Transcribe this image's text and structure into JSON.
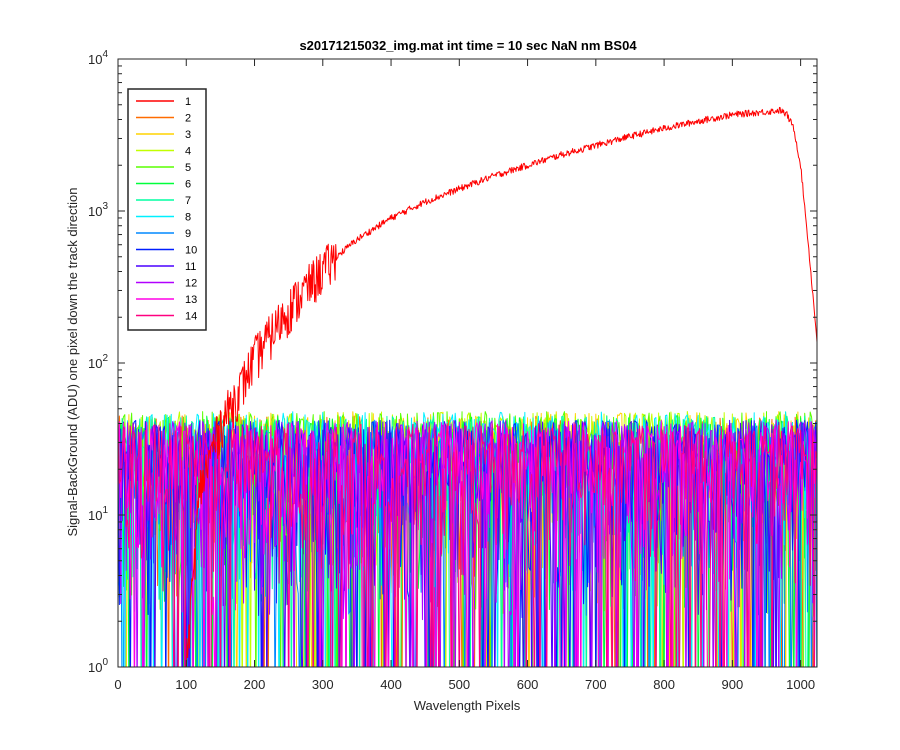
{
  "chart_data": {
    "type": "line",
    "title": "s20171215032_img.mat int time = 10 sec  NaN nm BS04",
    "xlabel": "Wavelength Pixels",
    "ylabel": "Signal-BackGround (ADU) one pixel down the track direction",
    "xlim": [
      0,
      1024
    ],
    "ylim": [
      1,
      10000
    ],
    "yscale": "log",
    "xticks": [
      "0",
      "100",
      "200",
      "300",
      "400",
      "500",
      "600",
      "700",
      "800",
      "900",
      "1000"
    ],
    "yticks": [
      {
        "base": "10",
        "exp": "0"
      },
      {
        "base": "10",
        "exp": "1"
      },
      {
        "base": "10",
        "exp": "2"
      },
      {
        "base": "10",
        "exp": "3"
      },
      {
        "base": "10",
        "exp": "4"
      }
    ],
    "grid": false,
    "legend_position": "top-left",
    "series": [
      {
        "name": "1",
        "color": "#ff0000",
        "x": [
          0,
          50,
          100,
          120,
          150,
          180,
          200,
          250,
          300,
          350,
          400,
          450,
          500,
          550,
          600,
          650,
          700,
          750,
          800,
          850,
          900,
          950,
          970,
          980,
          990,
          1000,
          1010,
          1024
        ],
        "y": [
          1,
          1,
          1,
          15,
          40,
          70,
          110,
          230,
          420,
          650,
          900,
          1150,
          1400,
          1700,
          2000,
          2350,
          2700,
          3100,
          3500,
          3900,
          4300,
          4500,
          4600,
          4300,
          3500,
          2000,
          700,
          140
        ]
      },
      {
        "name": "2",
        "color": "#ff6c00",
        "noise": [
          2,
          45
        ]
      },
      {
        "name": "3",
        "color": "#ffd400",
        "noise": [
          2,
          48
        ]
      },
      {
        "name": "4",
        "color": "#c2ff00",
        "noise": [
          2,
          48
        ]
      },
      {
        "name": "5",
        "color": "#5aff00",
        "noise": [
          2,
          48
        ]
      },
      {
        "name": "6",
        "color": "#00ff3b",
        "noise": [
          2,
          45
        ]
      },
      {
        "name": "7",
        "color": "#00ffa2",
        "noise": [
          2,
          45
        ]
      },
      {
        "name": "8",
        "color": "#00f0ff",
        "noise": [
          2,
          48
        ]
      },
      {
        "name": "9",
        "color": "#0088ff",
        "noise": [
          2,
          42
        ]
      },
      {
        "name": "10",
        "color": "#001eff",
        "noise": [
          2,
          42
        ]
      },
      {
        "name": "11",
        "color": "#4a00ff",
        "noise": [
          2,
          42
        ]
      },
      {
        "name": "12",
        "color": "#b100ff",
        "noise": [
          2,
          42
        ]
      },
      {
        "name": "13",
        "color": "#ff00e6",
        "noise": [
          2,
          42
        ]
      },
      {
        "name": "14",
        "color": "#ff0080",
        "noise": [
          3,
          40
        ]
      }
    ]
  }
}
